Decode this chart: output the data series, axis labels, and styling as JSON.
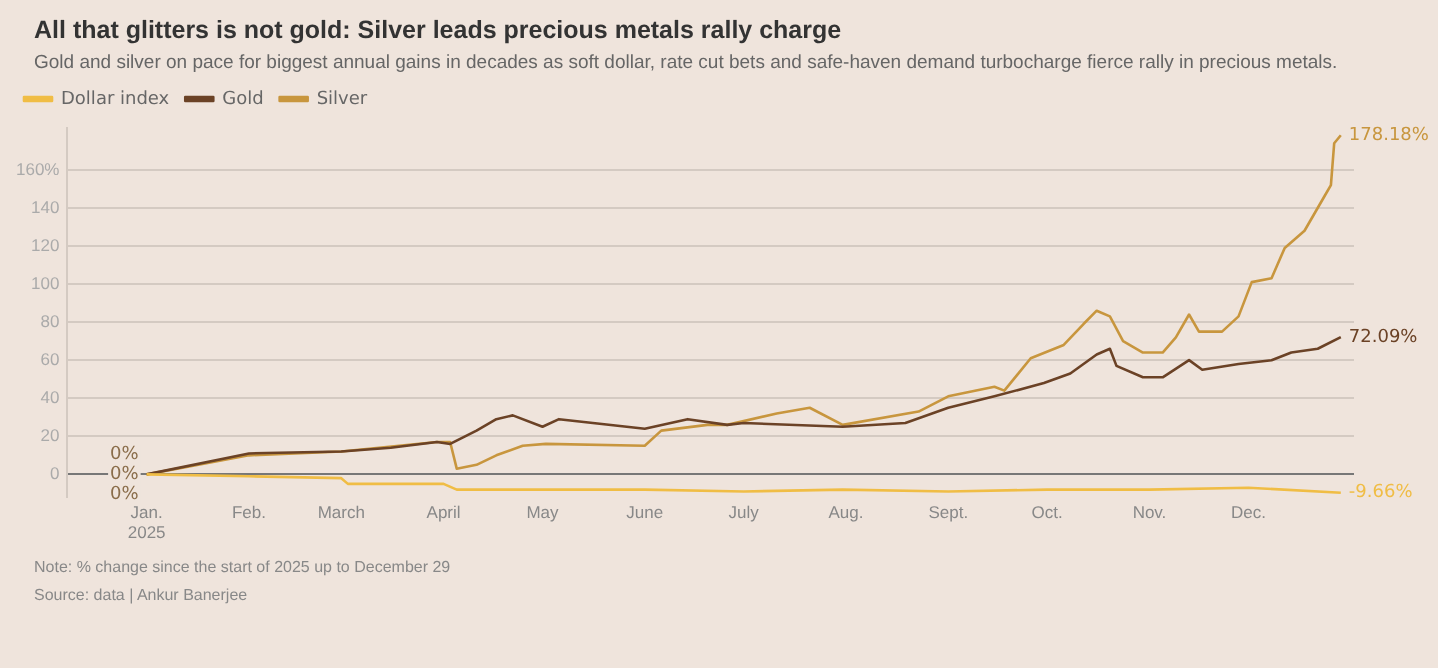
{
  "chart_data": {
    "type": "line",
    "title": "All that glitters is not gold: Silver leads precious metals rally charge",
    "subtitle": "Gold and silver on pace for biggest annual gains in decades as soft dollar, rate cut bets and safe-haven demand turbocharge fierce rally in precious metals.",
    "series": [
      {
        "name": "Dollar index",
        "color": "#f0bd45",
        "x": [
          "2025-01-01",
          "2025-02-01",
          "2025-03-01",
          "2025-03-03",
          "2025-04-01",
          "2025-04-05",
          "2025-05-01",
          "2025-06-01",
          "2025-07-01",
          "2025-07-31",
          "2025-09-01",
          "2025-10-01",
          "2025-11-01",
          "2025-12-01",
          "2025-12-29"
        ],
        "values": [
          0,
          -1,
          -2,
          -5,
          -5,
          -8,
          -8,
          -8,
          -9,
          -8,
          -9,
          -8,
          -8,
          -7,
          -9.66
        ],
        "value_labels": [
          "0%",
          null,
          null,
          null,
          null,
          null,
          null,
          null,
          null,
          null,
          null,
          null,
          null,
          null,
          "-9.66%"
        ]
      },
      {
        "name": "Gold",
        "color": "#6b4226",
        "x": [
          "2025-01-01",
          "2025-02-01",
          "2025-03-01",
          "2025-03-16",
          "2025-03-30",
          "2025-04-03",
          "2025-04-11",
          "2025-04-17",
          "2025-04-22",
          "2025-05-01",
          "2025-05-06",
          "2025-06-01",
          "2025-06-14",
          "2025-06-26",
          "2025-07-01",
          "2025-07-31",
          "2025-08-19",
          "2025-09-01",
          "2025-09-15",
          "2025-09-30",
          "2025-10-08",
          "2025-10-16",
          "2025-10-20",
          "2025-10-22",
          "2025-10-30",
          "2025-11-05",
          "2025-11-13",
          "2025-11-17",
          "2025-11-28",
          "2025-12-08",
          "2025-12-14",
          "2025-12-22",
          "2025-12-29"
        ],
        "values": [
          0,
          11,
          12,
          14,
          17,
          16,
          23,
          29,
          31,
          25,
          29,
          24,
          29,
          26,
          27,
          25,
          27,
          35,
          41,
          48,
          53,
          63,
          66,
          57,
          51,
          51,
          60,
          55,
          58,
          60,
          64,
          66,
          72.09
        ],
        "value_labels": [
          "0%",
          null,
          null,
          null,
          null,
          null,
          null,
          null,
          null,
          null,
          null,
          null,
          null,
          null,
          null,
          null,
          null,
          null,
          null,
          null,
          null,
          null,
          null,
          null,
          null,
          null,
          null,
          null,
          null,
          null,
          null,
          null,
          "72.09%"
        ]
      },
      {
        "name": "Silver",
        "color": "#c8963e",
        "x": [
          "2025-01-01",
          "2025-02-01",
          "2025-03-01",
          "2025-03-30",
          "2025-04-03",
          "2025-04-05",
          "2025-04-11",
          "2025-04-17",
          "2025-04-25",
          "2025-05-02",
          "2025-06-01",
          "2025-06-06",
          "2025-06-20",
          "2025-06-26",
          "2025-07-11",
          "2025-07-21",
          "2025-07-31",
          "2025-08-23",
          "2025-09-01",
          "2025-09-15",
          "2025-09-18",
          "2025-09-26",
          "2025-10-06",
          "2025-10-12",
          "2025-10-16",
          "2025-10-20",
          "2025-10-24",
          "2025-10-30",
          "2025-11-05",
          "2025-11-09",
          "2025-11-13",
          "2025-11-16",
          "2025-11-23",
          "2025-11-28",
          "2025-12-02",
          "2025-12-08",
          "2025-12-12",
          "2025-12-18",
          "2025-12-24",
          "2025-12-26",
          "2025-12-27",
          "2025-12-29"
        ],
        "values": [
          0,
          10,
          12,
          17,
          17,
          3,
          5,
          10,
          15,
          16,
          15,
          23,
          26,
          26,
          32,
          35,
          26,
          33,
          41,
          46,
          44,
          61,
          68,
          79,
          86,
          83,
          70,
          64,
          64,
          72,
          84,
          75,
          75,
          83,
          101,
          103,
          119,
          128,
          146,
          152,
          174,
          178.18
        ],
        "value_labels": [
          "0%",
          null,
          null,
          null,
          null,
          null,
          null,
          null,
          null,
          null,
          null,
          null,
          null,
          null,
          null,
          null,
          null,
          null,
          null,
          null,
          null,
          null,
          null,
          null,
          null,
          null,
          null,
          null,
          null,
          null,
          null,
          null,
          null,
          null,
          null,
          null,
          null,
          null,
          null,
          null,
          null,
          "178.18%"
        ]
      }
    ],
    "xlim": [
      "2024-12-08",
      "2026-01-02"
    ],
    "xticks": [
      {
        "value": "2025-01-01",
        "label": "Jan.\n2025"
      },
      {
        "value": "2025-02-01",
        "label": "Feb."
      },
      {
        "value": "2025-03-01",
        "label": "March"
      },
      {
        "value": "2025-04-01",
        "label": "April"
      },
      {
        "value": "2025-05-01",
        "label": "May"
      },
      {
        "value": "2025-06-01",
        "label": "June"
      },
      {
        "value": "2025-07-01",
        "label": "July"
      },
      {
        "value": "2025-08-01",
        "label": "Aug."
      },
      {
        "value": "2025-09-01",
        "label": "Sept."
      },
      {
        "value": "2025-10-01",
        "label": "Oct."
      },
      {
        "value": "2025-11-01",
        "label": "Nov."
      },
      {
        "value": "2025-12-01",
        "label": "Dec."
      }
    ],
    "ylim": [
      -12,
      182
    ],
    "yticks": [
      0,
      20,
      40,
      60,
      80,
      100,
      120,
      140,
      {
        "value": 160,
        "label": "160%"
      }
    ],
    "grid": "y",
    "legend": "top left",
    "marker": "none",
    "line_style": "solid",
    "annotations": [
      "Note: % change since the start of 2025 up to December 29",
      "Source: data | Ankur Banerjee"
    ]
  }
}
